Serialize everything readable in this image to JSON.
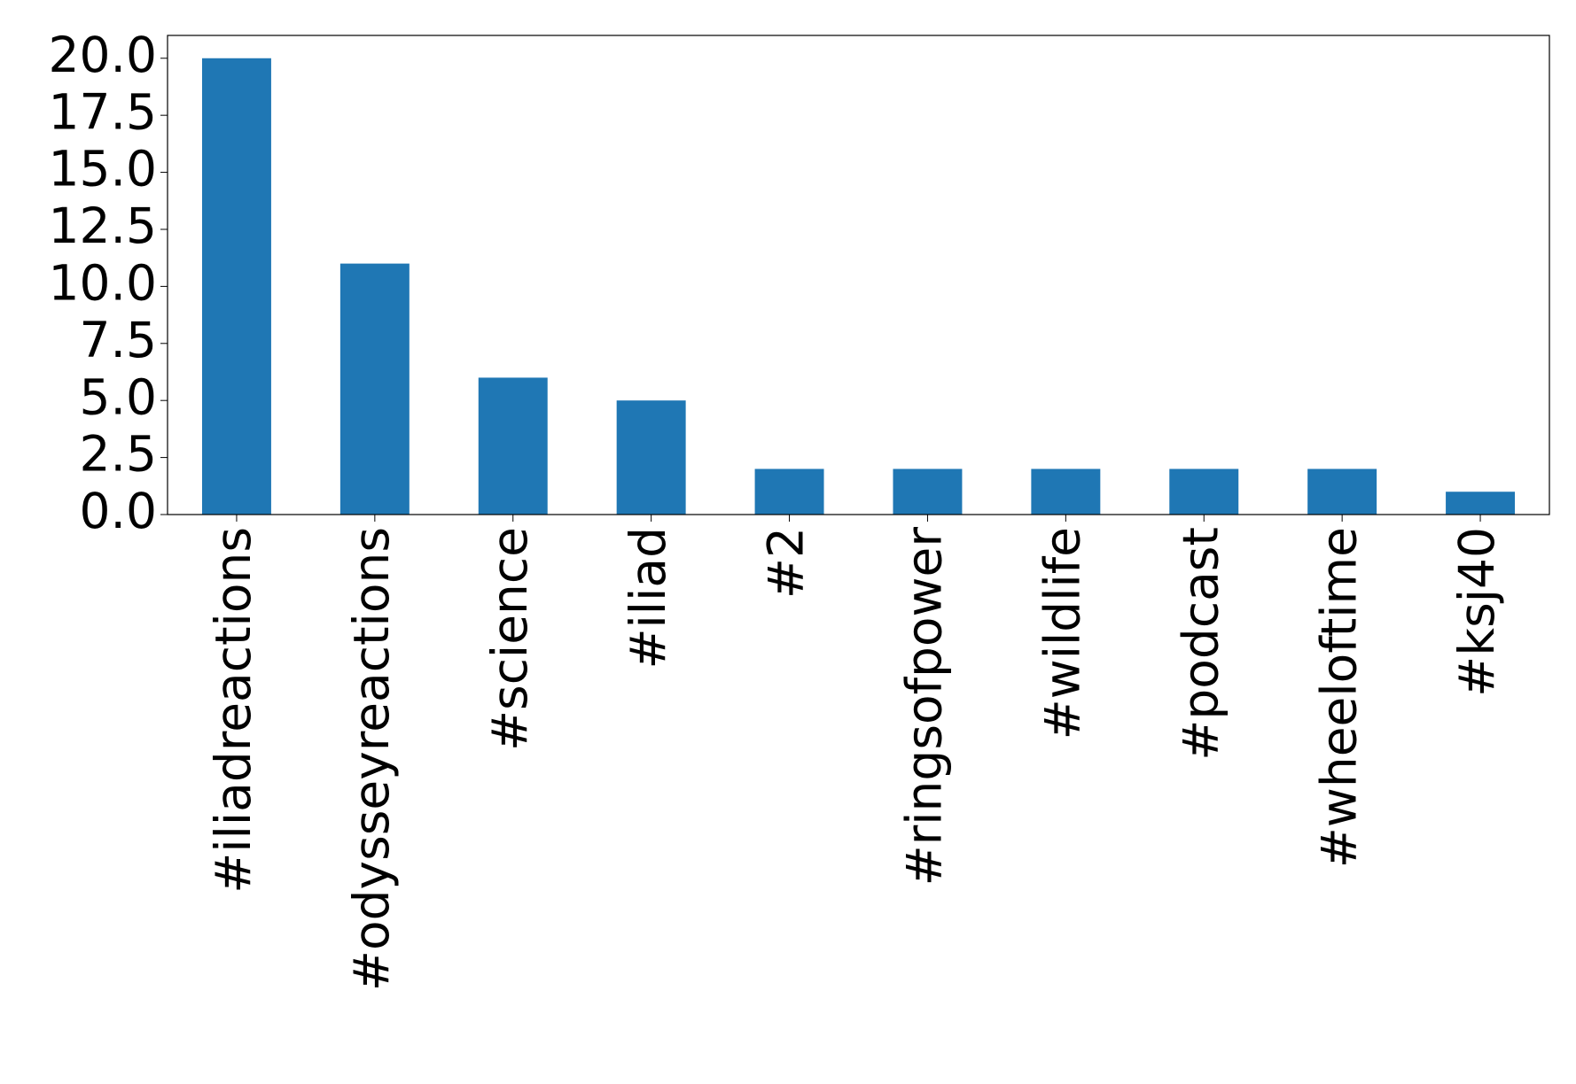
{
  "chart_data": {
    "type": "bar",
    "categories": [
      "#iliadreactions",
      "#odysseyreactions",
      "#science",
      "#iliad",
      "#2",
      "#ringsofpower",
      "#wildlife",
      "#podcast",
      "#wheeloftime",
      "#ksj40"
    ],
    "values": [
      20,
      11,
      6,
      5,
      2,
      2,
      2,
      2,
      2,
      1
    ],
    "color": "#1f77b4",
    "ylim": [
      0,
      21
    ],
    "yticks": [
      {
        "value": 0,
        "label": "0.0"
      },
      {
        "value": 2.5,
        "label": "2.5"
      },
      {
        "value": 5,
        "label": "5.0"
      },
      {
        "value": 7.5,
        "label": "7.5"
      },
      {
        "value": 10,
        "label": "10.0"
      },
      {
        "value": 12.5,
        "label": "12.5"
      },
      {
        "value": 15,
        "label": "15.0"
      },
      {
        "value": 17.5,
        "label": "17.5"
      },
      {
        "value": 20,
        "label": "20.0"
      }
    ],
    "grid": false
  }
}
